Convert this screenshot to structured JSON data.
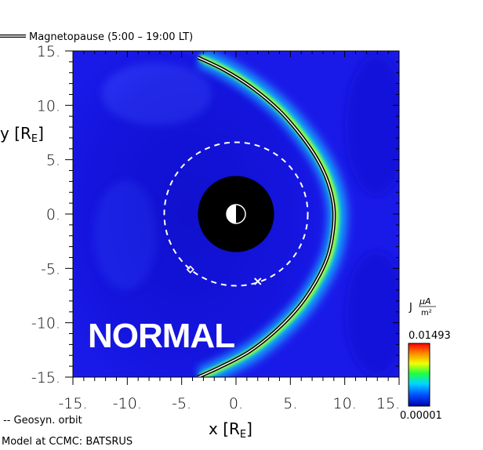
{
  "chart_data": {
    "type": "heatmap",
    "legend_line_label": "Magnetopause (5:00 – 19:00 LT)",
    "geosyn_label": "-- Geosyn. orbit",
    "model_label": "Model at CCMC: BATSRUS",
    "overlay_text": "NORMAL",
    "xlabel": "x [R",
    "xlabel_sub": "E",
    "xlabel_close": "]",
    "ylabel": "y [R",
    "ylabel_sub": "E",
    "ylabel_close": "]",
    "xlim": [
      -15,
      15
    ],
    "ylim": [
      -15,
      15
    ],
    "x_ticks": [
      -15,
      -10,
      -5,
      0,
      5,
      10,
      15
    ],
    "x_tick_labels": [
      "-15.",
      "-10.",
      "-5.",
      "0.",
      "5.",
      "10.",
      "15."
    ],
    "y_ticks": [
      15,
      10,
      5,
      0,
      -5,
      -10,
      -15
    ],
    "y_tick_labels": [
      "15.",
      "10.",
      "5.",
      "0.",
      "-5.",
      "-10.",
      "-15."
    ],
    "colorbar": {
      "title": "J",
      "unit_num": "μA",
      "unit_den": "m²",
      "max_label": "0.01493",
      "min_label": "0.00001",
      "max": 0.01493,
      "min": 1e-05
    },
    "inner_boundary_radius": 3.5,
    "geosyn_orbit_radius": 6.6,
    "magnetopause": [
      {
        "x": -3.5,
        "y": 14.4
      },
      {
        "x": -1.0,
        "y": 13.2
      },
      {
        "x": 1.5,
        "y": 11.6
      },
      {
        "x": 4.0,
        "y": 9.5
      },
      {
        "x": 6.0,
        "y": 7.2
      },
      {
        "x": 7.5,
        "y": 5.0
      },
      {
        "x": 8.5,
        "y": 2.8
      },
      {
        "x": 9.0,
        "y": 0.5
      },
      {
        "x": 8.9,
        "y": -1.8
      },
      {
        "x": 8.4,
        "y": -4.0
      },
      {
        "x": 7.3,
        "y": -6.3
      },
      {
        "x": 5.8,
        "y": -8.5
      },
      {
        "x": 3.8,
        "y": -10.6
      },
      {
        "x": 1.3,
        "y": -12.6
      },
      {
        "x": -1.3,
        "y": -14.0
      },
      {
        "x": -3.5,
        "y": -15.0
      }
    ],
    "satellite_markers": [
      {
        "x": -4.2,
        "y": -5.1,
        "symbol": "diamond"
      },
      {
        "x": 2.0,
        "y": -6.2,
        "symbol": "cross"
      }
    ]
  }
}
